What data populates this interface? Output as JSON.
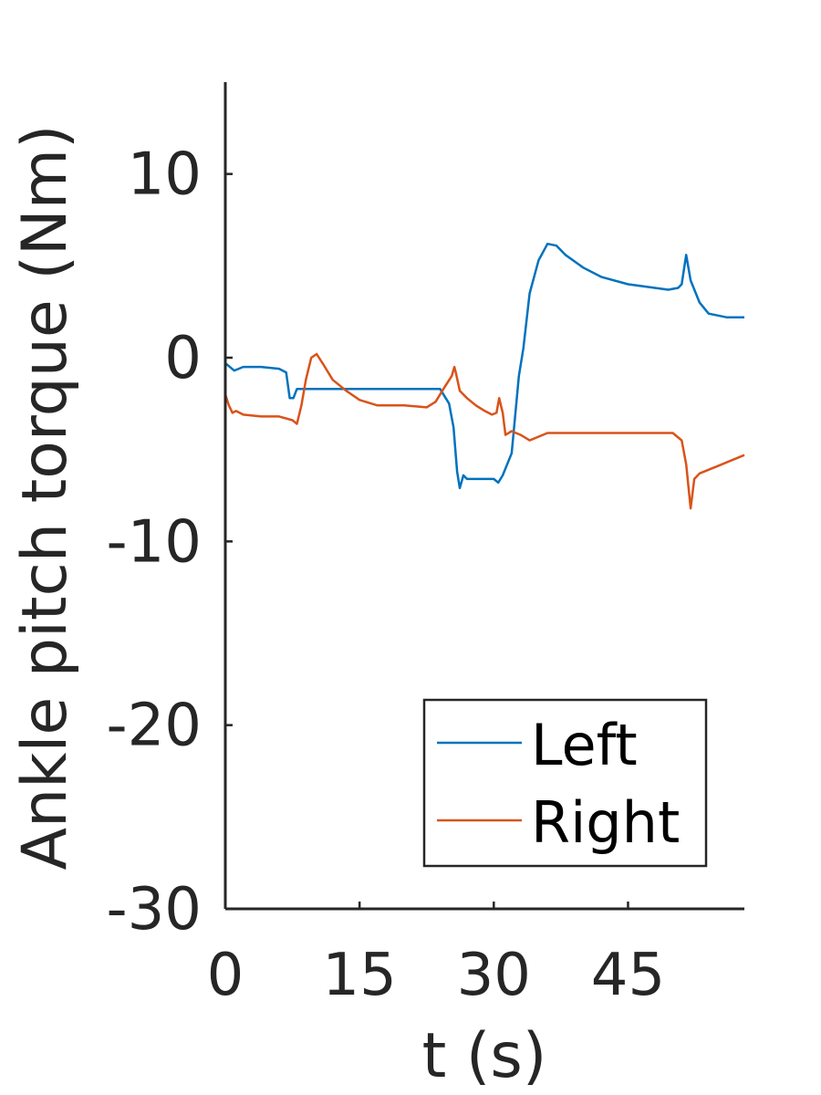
{
  "chart_data": {
    "type": "line",
    "title": "",
    "xlabel": "t (s)",
    "ylabel": "Ankle pitch torque (Nm)",
    "xlim": [
      0,
      58
    ],
    "ylim": [
      -30,
      15
    ],
    "xticks": [
      0,
      15,
      30,
      45
    ],
    "yticks": [
      -30,
      -20,
      -10,
      0,
      10
    ],
    "grid": false,
    "legend_position": "bottom-right",
    "series": [
      {
        "name": "Left",
        "color": "#0072BD",
        "x": [
          0,
          0.5,
          1,
          2,
          4,
          6,
          6.8,
          7.2,
          7.6,
          8.0,
          10,
          15,
          20,
          24,
          25,
          25.5,
          25.9,
          26.2,
          26.6,
          27,
          28,
          30,
          30.5,
          31,
          32,
          32.8,
          33.3,
          34,
          35,
          36,
          37,
          38,
          40,
          42,
          45,
          48,
          49.5,
          50.6,
          51,
          51.5,
          52,
          53,
          54,
          56,
          58
        ],
        "y": [
          -0.3,
          -0.5,
          -0.7,
          -0.5,
          -0.5,
          -0.6,
          -0.8,
          -2.2,
          -2.2,
          -1.7,
          -1.7,
          -1.7,
          -1.7,
          -1.7,
          -2.5,
          -3.8,
          -6.2,
          -7.1,
          -6.4,
          -6.6,
          -6.6,
          -6.6,
          -6.8,
          -6.4,
          -5.2,
          -1.0,
          0.5,
          3.5,
          5.3,
          6.2,
          6.1,
          5.6,
          4.9,
          4.4,
          4.0,
          3.8,
          3.7,
          3.8,
          4.0,
          5.6,
          4.2,
          3.0,
          2.4,
          2.2,
          2.2
        ]
      },
      {
        "name": "Right",
        "color": "#D95319",
        "x": [
          0,
          0.4,
          0.8,
          1.2,
          2,
          4,
          6,
          7.5,
          8.0,
          8.5,
          9,
          9.6,
          10.2,
          11,
          12,
          13.5,
          15,
          17,
          20,
          22.5,
          23.5,
          24.5,
          25.3,
          25.6,
          25.8,
          26.2,
          27,
          28,
          29,
          29.8,
          30.3,
          30.6,
          31,
          31.3,
          32,
          33,
          34,
          36,
          40,
          45,
          50,
          51,
          51.5,
          52,
          52.4,
          53,
          55,
          58
        ],
        "y": [
          -2.0,
          -2.6,
          -3.0,
          -2.9,
          -3.1,
          -3.2,
          -3.2,
          -3.4,
          -3.6,
          -2.6,
          -1.2,
          0.0,
          0.2,
          -0.4,
          -1.2,
          -1.8,
          -2.3,
          -2.6,
          -2.6,
          -2.7,
          -2.4,
          -1.6,
          -1.0,
          -0.5,
          -0.9,
          -1.8,
          -2.2,
          -2.6,
          -2.9,
          -3.1,
          -3.0,
          -2.2,
          -3.0,
          -4.2,
          -4.0,
          -4.2,
          -4.5,
          -4.1,
          -4.1,
          -4.1,
          -4.1,
          -4.5,
          -5.8,
          -8.2,
          -6.6,
          -6.3,
          -5.9,
          -5.3
        ]
      }
    ]
  }
}
